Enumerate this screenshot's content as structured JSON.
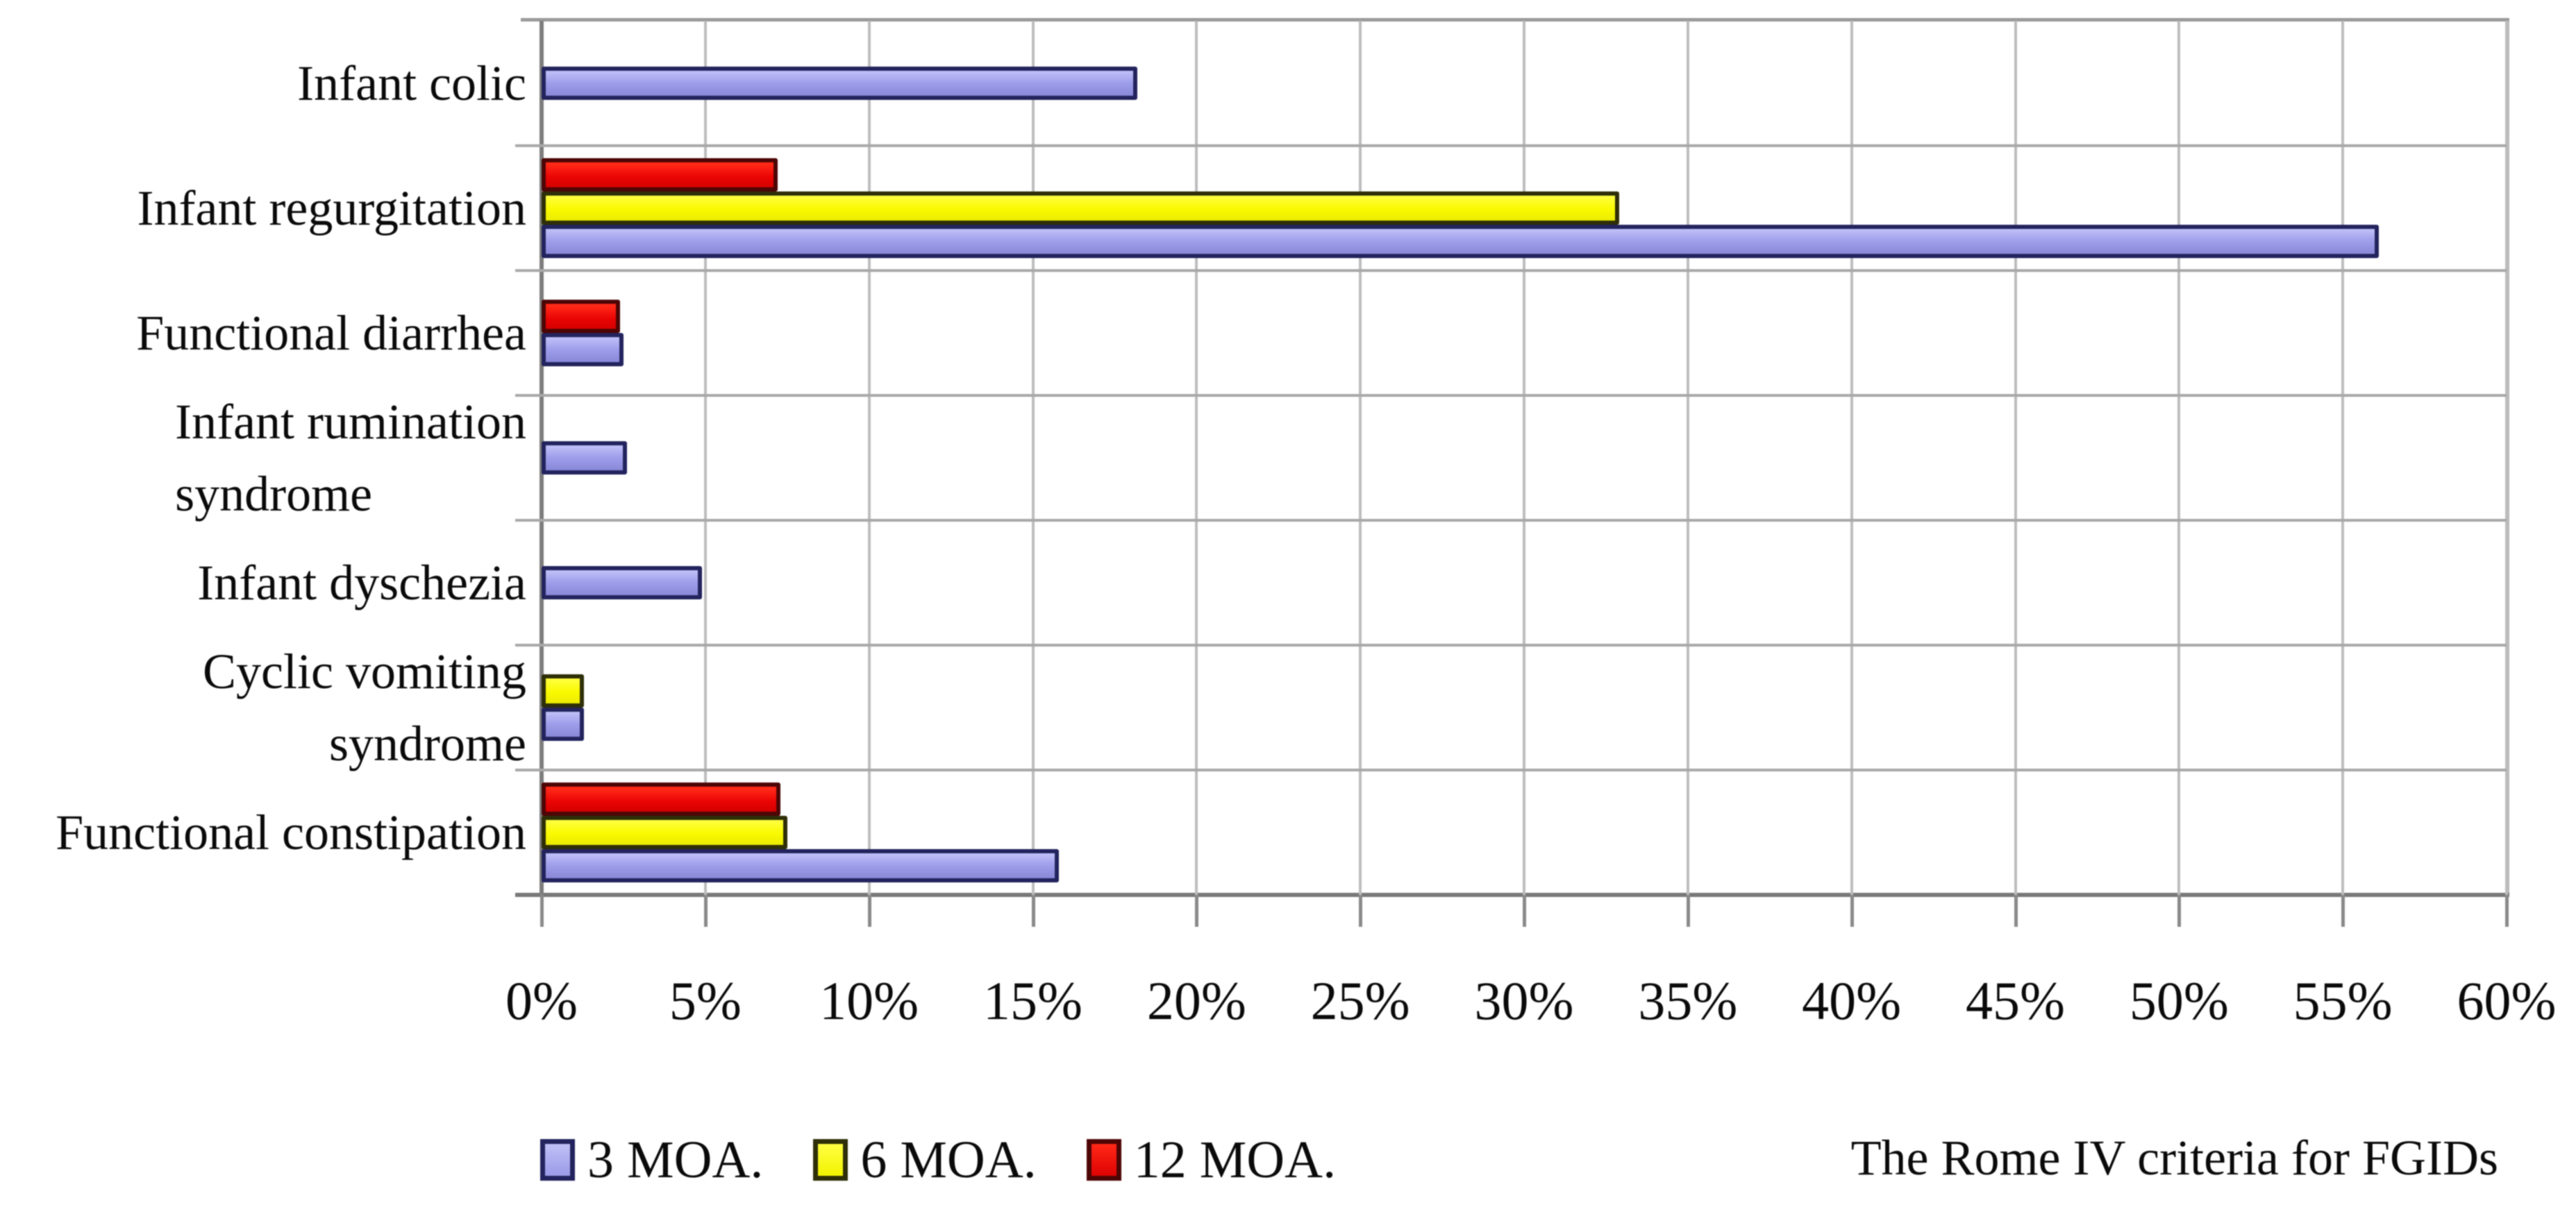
{
  "chart_data": {
    "type": "bar",
    "orientation": "horizontal",
    "title": "",
    "note": "The Rome IV criteria for FGIDs",
    "xlim": [
      0,
      60
    ],
    "x_tick_step": 5,
    "x_ticks": [
      "0%",
      "5%",
      "10%",
      "15%",
      "20%",
      "25%",
      "30%",
      "35%",
      "40%",
      "45%",
      "50%",
      "55%",
      "60%"
    ],
    "grid": true,
    "legend_position": "bottom-left",
    "categories": [
      "Infant colic",
      "Infant regurgitation",
      "Functional diarrhea",
      "Infant rumination syndrome",
      "Infant dyschezia",
      "Cyclic vomiting syndrome",
      "Functional constipation"
    ],
    "category_lines": {
      "Infant rumination syndrome": [
        "Infant rumination",
        "syndrome"
      ]
    },
    "series": [
      {
        "name": "3 MOA.",
        "color": "#9c9ce9",
        "border": "#23235e",
        "values": [
          18.2,
          56.1,
          2.5,
          2.6,
          4.9,
          1.3,
          15.8
        ]
      },
      {
        "name": "6 MOA.",
        "color": "#f9f900",
        "border": "#2e2e08",
        "values": [
          0,
          32.9,
          0,
          0,
          0,
          1.3,
          7.5
        ]
      },
      {
        "name": "12 MOA.",
        "color": "#e90404",
        "border": "#4d0505",
        "values": [
          0,
          7.2,
          2.4,
          0,
          0,
          0,
          7.3
        ]
      }
    ],
    "bar_order_top_to_bottom": [
      "12 MOA.",
      "6 MOA.",
      "3 MOA."
    ],
    "zero_values_not_drawn": true
  }
}
